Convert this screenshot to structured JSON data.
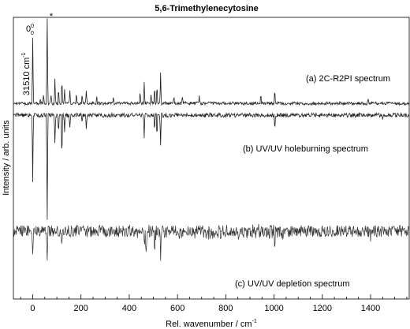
{
  "chart_data": {
    "type": "line",
    "title": "5,6-Trimethylenecytosine",
    "xlabel": "Rel. wavenumber / cm",
    "xlabel_superscript": "-1",
    "ylabel": "Intensity / arb. units",
    "xlim": [
      -80,
      1560
    ],
    "xticks": [
      0,
      200,
      400,
      600,
      800,
      1000,
      1200,
      1400
    ],
    "yticks_shown": false,
    "grid": false,
    "series": [
      {
        "name": "(a) 2C-R2PI spectrum",
        "label": "(a) 2C-R2PI spectrum",
        "direction": "up",
        "peaks": [
          {
            "x": 0,
            "h": 0.78
          },
          {
            "x": 31,
            "h": 0.06
          },
          {
            "x": 45,
            "h": 0.12
          },
          {
            "x": 60,
            "h": 1.0
          },
          {
            "x": 76,
            "h": 0.1
          },
          {
            "x": 92,
            "h": 0.28
          },
          {
            "x": 107,
            "h": 0.18
          },
          {
            "x": 121,
            "h": 0.3
          },
          {
            "x": 132,
            "h": 0.18
          },
          {
            "x": 154,
            "h": 0.16
          },
          {
            "x": 181,
            "h": 0.14
          },
          {
            "x": 205,
            "h": 0.12
          },
          {
            "x": 222,
            "h": 0.16
          },
          {
            "x": 265,
            "h": 0.1
          },
          {
            "x": 335,
            "h": 0.08
          },
          {
            "x": 445,
            "h": 0.16
          },
          {
            "x": 462,
            "h": 0.26
          },
          {
            "x": 490,
            "h": 0.12
          },
          {
            "x": 505,
            "h": 0.2
          },
          {
            "x": 515,
            "h": 0.24
          },
          {
            "x": 530,
            "h": 0.36
          },
          {
            "x": 585,
            "h": 0.1
          },
          {
            "x": 620,
            "h": 0.08
          },
          {
            "x": 690,
            "h": 0.1
          },
          {
            "x": 945,
            "h": 0.12
          },
          {
            "x": 1003,
            "h": 0.18
          },
          {
            "x": 1390,
            "h": 0.06
          }
        ]
      },
      {
        "name": "(b) UV/UV holeburning spectrum",
        "label": "(b) UV/UV holeburning spectrum",
        "direction": "down",
        "peaks": [
          {
            "x": 0,
            "h": 0.65
          },
          {
            "x": 60,
            "h": 1.0
          },
          {
            "x": 92,
            "h": 0.28
          },
          {
            "x": 107,
            "h": 0.2
          },
          {
            "x": 121,
            "h": 0.46
          },
          {
            "x": 132,
            "h": 0.16
          },
          {
            "x": 154,
            "h": 0.12
          },
          {
            "x": 205,
            "h": 0.1
          },
          {
            "x": 222,
            "h": 0.14
          },
          {
            "x": 462,
            "h": 0.22
          },
          {
            "x": 505,
            "h": 0.18
          },
          {
            "x": 515,
            "h": 0.22
          },
          {
            "x": 530,
            "h": 0.3
          },
          {
            "x": 1003,
            "h": 0.14
          },
          {
            "x": 1450,
            "h": 0.06
          }
        ]
      },
      {
        "name": "(c) UV/UV depletion spectrum",
        "label": "(c) UV/UV depletion spectrum",
        "direction": "down",
        "peaks": [
          {
            "x": 0,
            "h": 0.5
          },
          {
            "x": 60,
            "h": 0.55
          },
          {
            "x": 121,
            "h": 0.3
          },
          {
            "x": 462,
            "h": 0.35
          },
          {
            "x": 470,
            "h": 0.6
          },
          {
            "x": 505,
            "h": 0.45
          },
          {
            "x": 530,
            "h": 0.65
          },
          {
            "x": 1003,
            "h": 0.4
          },
          {
            "x": 1400,
            "h": 0.18
          }
        ]
      }
    ],
    "annotations": [
      {
        "text": "0",
        "sub": "0",
        "sup": "0"
      },
      {
        "text": "*"
      },
      {
        "text": "31510 cm",
        "sup": "-1"
      }
    ]
  }
}
